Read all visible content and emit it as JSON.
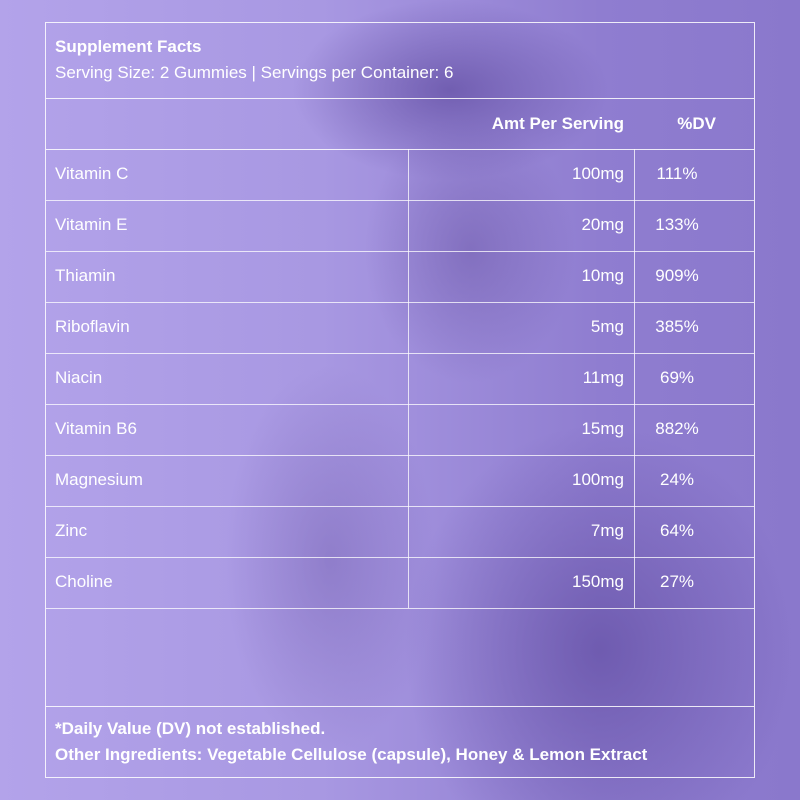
{
  "header": {
    "title": "Supplement Facts",
    "serving": "Serving Size: 2 Gummies | Servings per Container: 6"
  },
  "columns": {
    "amount": "Amt Per Serving",
    "dv": "%DV"
  },
  "rows": [
    {
      "name": "Vitamin C",
      "amount": "100mg",
      "dv": "111%"
    },
    {
      "name": "Vitamin E",
      "amount": "20mg",
      "dv": "133%"
    },
    {
      "name": "Thiamin",
      "amount": "10mg",
      "dv": "909%"
    },
    {
      "name": "Riboflavin",
      "amount": "5mg",
      "dv": "385%"
    },
    {
      "name": "Niacin",
      "amount": "11mg",
      "dv": "69%"
    },
    {
      "name": "Vitamin B6",
      "amount": "15mg",
      "dv": "882%"
    },
    {
      "name": "Magnesium",
      "amount": "100mg",
      "dv": "24%"
    },
    {
      "name": "Zinc",
      "amount": "7mg",
      "dv": "64%"
    },
    {
      "name": "Choline",
      "amount": "150mg",
      "dv": "27%"
    }
  ],
  "footer": {
    "note": "*Daily Value (DV) not established.",
    "ingredients": "Other Ingredients: Vegetable Cellulose (capsule), Honey & Lemon Extract"
  },
  "colors": {
    "overlay": "#a897e3",
    "text": "#ffffff"
  }
}
